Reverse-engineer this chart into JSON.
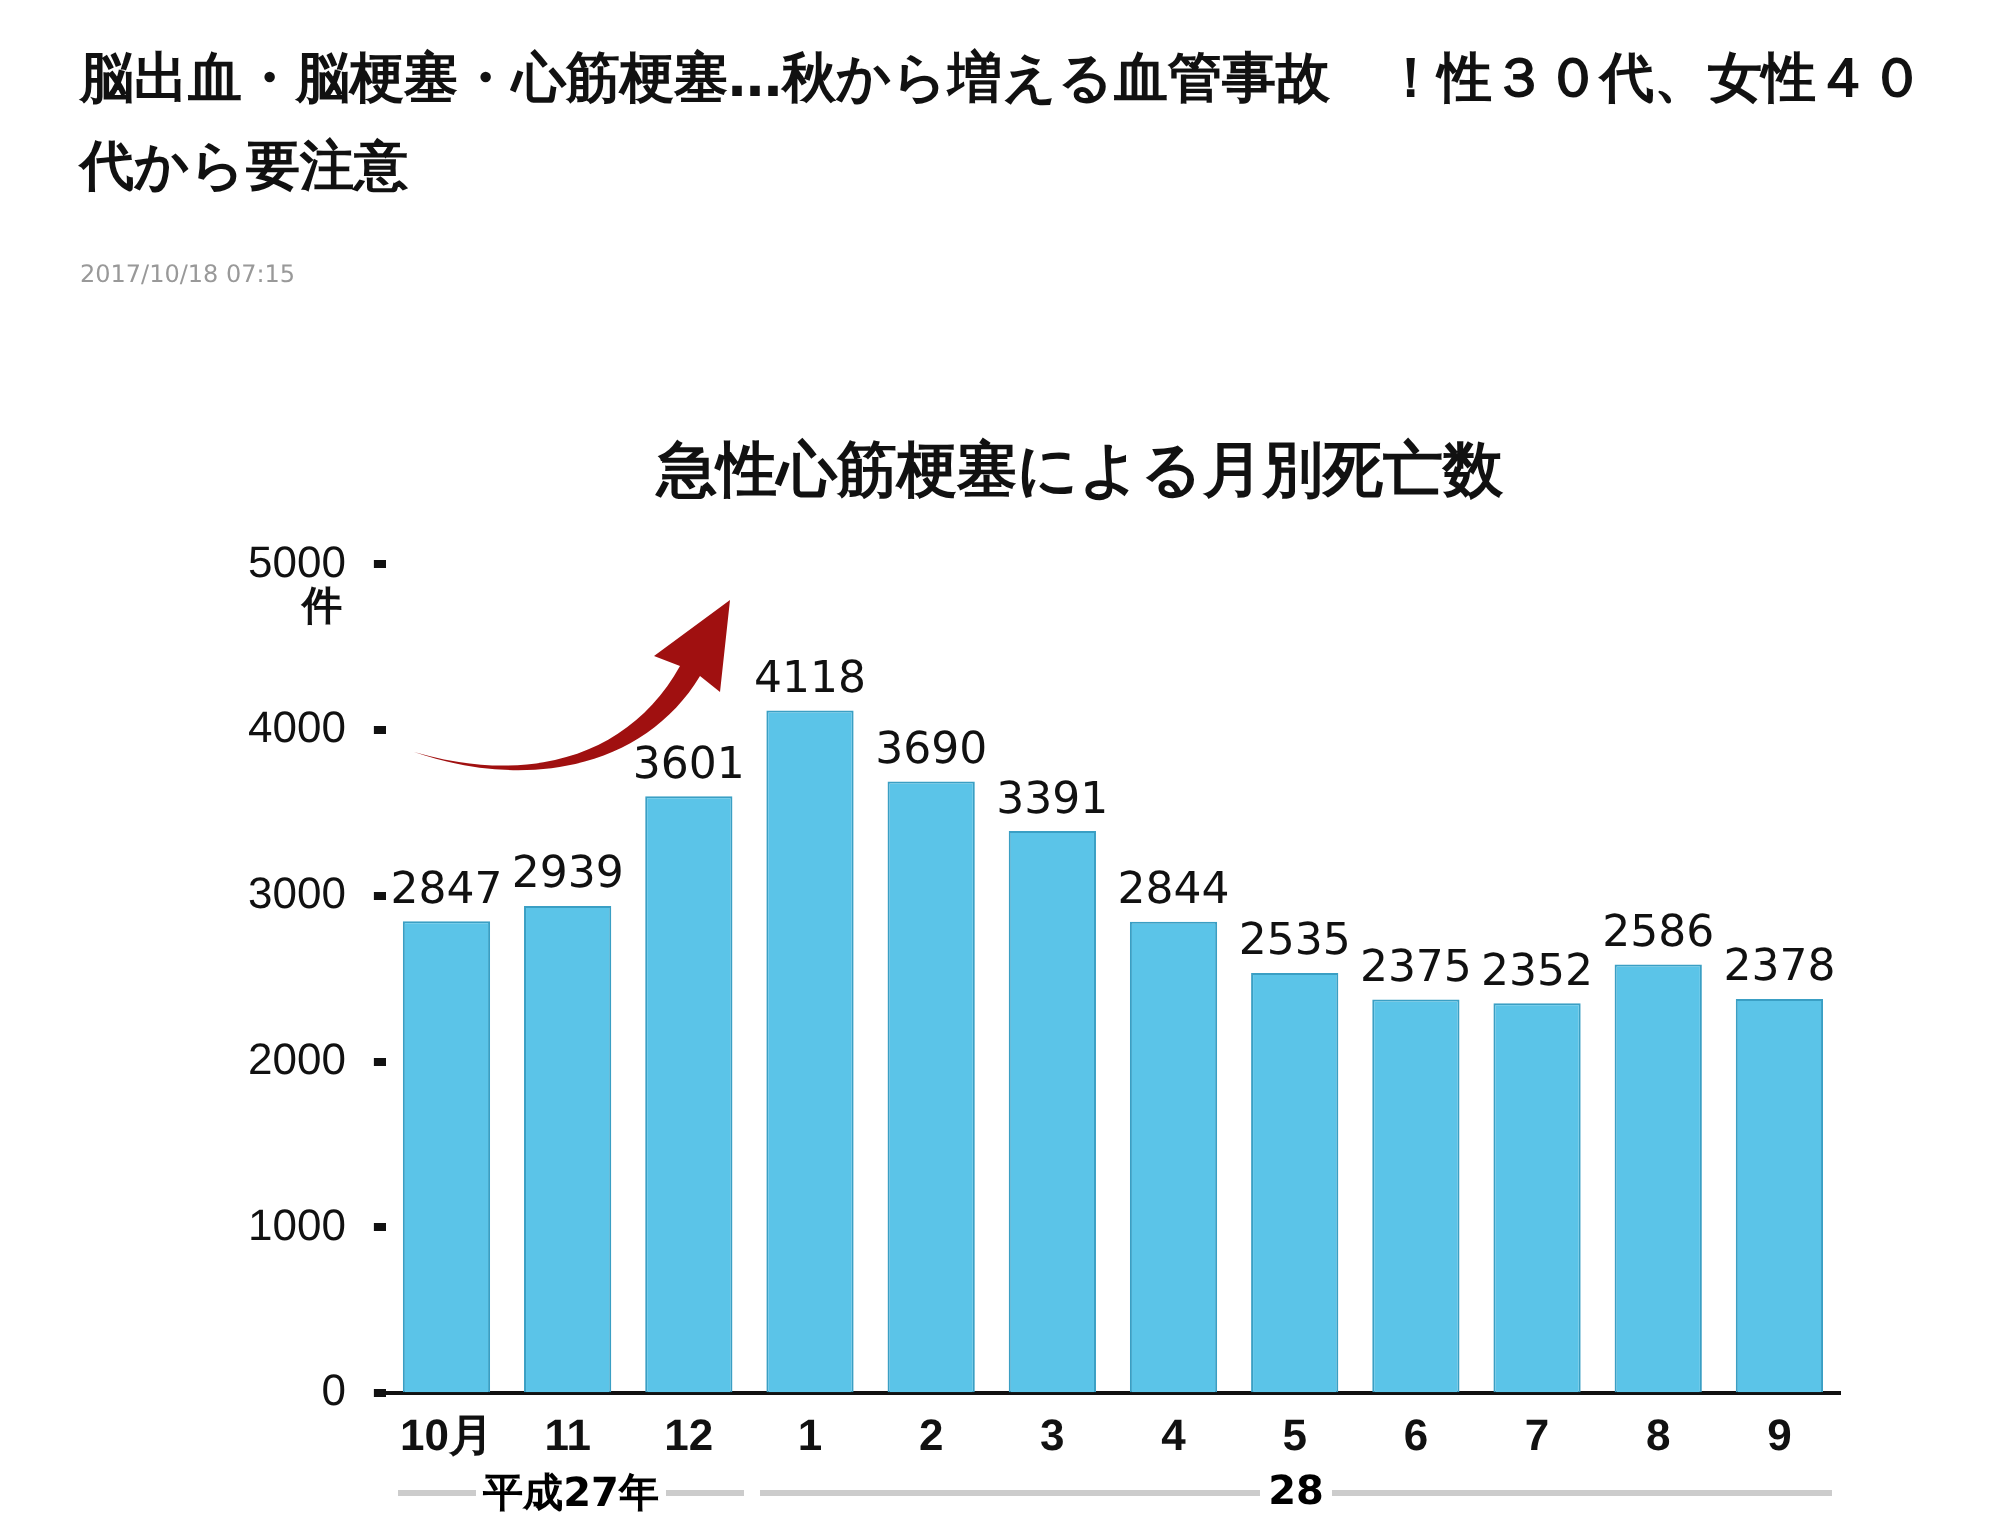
{
  "chart_data": {
    "type": "bar",
    "title": "急性心筋梗塞による月別死亡数",
    "ylabel": "件",
    "categories": [
      "10月",
      "11",
      "12",
      "1",
      "2",
      "3",
      "4",
      "5",
      "6",
      "7",
      "8",
      "9"
    ],
    "values": [
      2847,
      2939,
      3601,
      4118,
      3690,
      3391,
      2844,
      2535,
      2375,
      2352,
      2586,
      2378
    ],
    "color": "#5bc4e8",
    "ylim": [
      0,
      5000
    ],
    "yticks": [
      0,
      1000,
      2000,
      3000,
      4000,
      5000
    ],
    "grid": false,
    "legend": false,
    "data_labels": true,
    "annotations": [
      "脳出血・脳梗塞・心筋梗塞…秋から増える血管事故　！性３０代、女性４０代から要注意",
      "2017/10/18 07:15",
      "平成27年",
      "28"
    ]
  }
}
